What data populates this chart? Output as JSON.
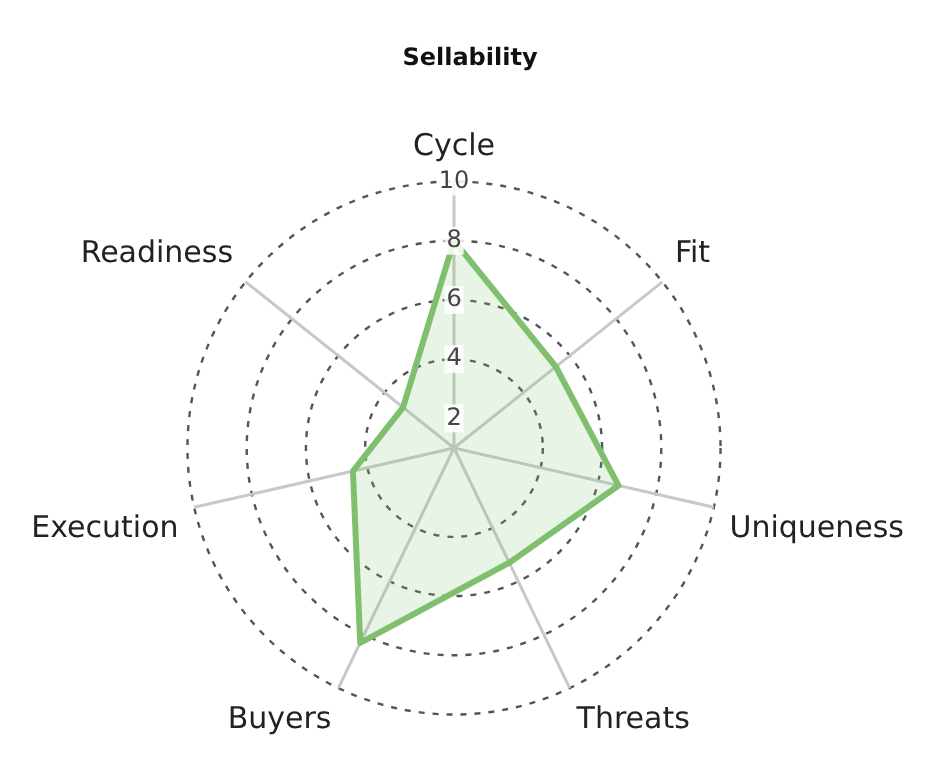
{
  "chart_data": {
    "type": "radar",
    "title": "Sellability",
    "categories": [
      "Cycle",
      "Fit",
      "Uniqueness",
      "Threats",
      "Buyers",
      "Execution",
      "Readiness"
    ],
    "series": [
      {
        "color": "#7fc06e",
        "values": [
          8,
          5.4,
          6.7,
          5.3,
          8.3,
          4.5,
          3.2
        ]
      }
    ],
    "ylim": [
      1,
      10
    ],
    "yticks": [
      2,
      4,
      6,
      8,
      10
    ],
    "grid": true,
    "legend": false,
    "marker": "none",
    "line_style": "solid"
  }
}
